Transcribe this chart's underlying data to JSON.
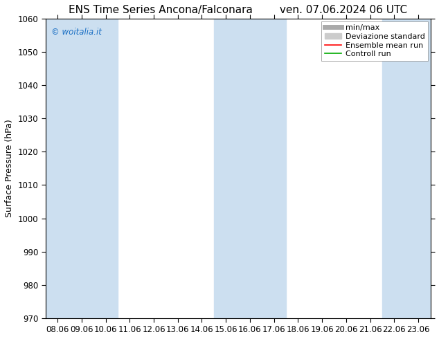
{
  "title_left": "ENS Time Series Ancona/Falconara",
  "title_right": "ven. 07.06.2024 06 UTC",
  "ylabel": "Surface Pressure (hPa)",
  "ylim": [
    970,
    1060
  ],
  "yticks": [
    970,
    980,
    990,
    1000,
    1010,
    1020,
    1030,
    1040,
    1050,
    1060
  ],
  "xtick_labels": [
    "08.06",
    "09.06",
    "10.06",
    "11.06",
    "12.06",
    "13.06",
    "14.06",
    "15.06",
    "16.06",
    "17.06",
    "18.06",
    "19.06",
    "20.06",
    "21.06",
    "22.06",
    "23.06"
  ],
  "background_color": "#ffffff",
  "plot_bg_color": "#ffffff",
  "band_color": "#ccdff0",
  "band_ranges": [
    [
      0,
      2
    ],
    [
      7,
      9
    ],
    [
      14,
      15
    ]
  ],
  "watermark": "© woitalia.it",
  "watermark_color": "#1a6fc4",
  "legend_labels": [
    "min/max",
    "Deviazione standard",
    "Ensemble mean run",
    "Controll run"
  ],
  "legend_line_colors": [
    "#aaaaaa",
    "#cccccc",
    "#ff0000",
    "#00aa00"
  ],
  "title_fontsize": 11,
  "axis_fontsize": 9,
  "tick_fontsize": 8.5,
  "legend_fontsize": 8
}
